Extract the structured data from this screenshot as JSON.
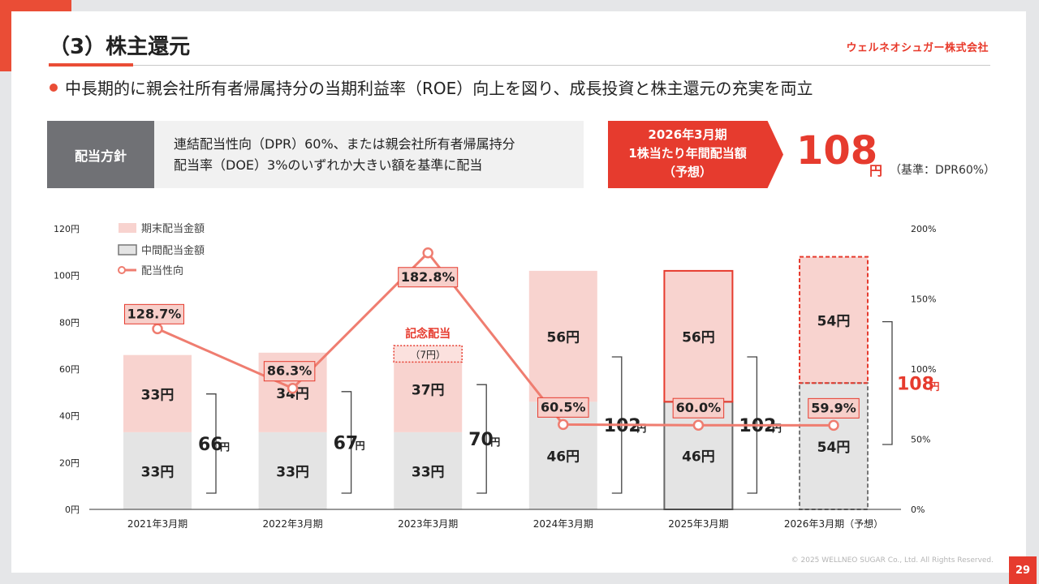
{
  "slide": {
    "title": "（3）株主還元",
    "company": "ウェルネオシュガー株式会社",
    "lead": "中長期的に親会社所有者帰属持分の当期利益率（ROE）向上を図り、成長投資と株主還元の充実を両立",
    "policy_label": "配当方針",
    "policy_line1": "連結配当性向（DPR）60%、または親会社所有者帰属持分",
    "policy_line2": "配当率（DOE）3%のいずれか大きい額を基準に配当",
    "forecast_line1": "2026年3月期",
    "forecast_line2": "1株当たり年間配当額",
    "forecast_line3": "（予想）",
    "dps_value": "108",
    "dps_unit": "円",
    "dps_note": "（基準：DPR60%）",
    "copyright": "© 2025 WELLNEO SUGAR Co., Ltd. All Rights Reserved.",
    "page_number": "29"
  },
  "colors": {
    "accent": "#e63b2e",
    "final_fill": "#f8d3cf",
    "interim_fill": "#e4e4e4",
    "line": "#ef7d70",
    "policy_label_bg": "#707175"
  },
  "chart_data": {
    "type": "bar",
    "categories": [
      "2021年3月期",
      "2022年3月期",
      "2023年3月期",
      "2024年3月期",
      "2025年3月期",
      "2026年3月期（予想）"
    ],
    "series": [
      {
        "name": "中間配当金額",
        "values": [
          33,
          33,
          33,
          46,
          46,
          54
        ],
        "labels": [
          "33円",
          "33円",
          "33円",
          "46円",
          "46円",
          "54円"
        ]
      },
      {
        "name": "期末配当金額",
        "values": [
          33,
          34,
          37,
          56,
          56,
          54
        ],
        "labels": [
          "33円",
          "34円",
          "37円",
          "56円",
          "56円",
          "54円"
        ]
      },
      {
        "name": "配当性向",
        "type": "line",
        "axis": "right",
        "values": [
          128.7,
          86.3,
          182.8,
          60.5,
          60.0,
          59.9
        ],
        "labels": [
          "128.7%",
          "86.3%",
          "182.8%",
          "60.5%",
          "60.0%",
          "59.9%"
        ]
      }
    ],
    "commemorative": {
      "category": "2023年3月期",
      "value": 7,
      "title": "記念配当",
      "label": "（7円）"
    },
    "totals": [
      {
        "num": "66",
        "unit": "円"
      },
      {
        "num": "67",
        "unit": "円"
      },
      {
        "num": "70",
        "unit": "円"
      },
      {
        "num": "102",
        "unit": "円"
      },
      {
        "num": "102",
        "unit": "円"
      },
      {
        "num": "108",
        "unit": "円"
      }
    ],
    "highlight": [
      "",
      "",
      "",
      "",
      "solid",
      "dashed"
    ],
    "y_left": {
      "ticks": [
        0,
        20,
        40,
        60,
        80,
        100,
        120
      ],
      "tick_labels": [
        "0円",
        "20円",
        "40円",
        "60円",
        "80円",
        "100円",
        "120円"
      ],
      "ylim": [
        0,
        120
      ]
    },
    "y_right": {
      "ticks": [
        0,
        50,
        100,
        150,
        200
      ],
      "tick_labels": [
        "0%",
        "50%",
        "100%",
        "150%",
        "200%"
      ],
      "ylim": [
        0,
        200
      ]
    },
    "legend": [
      "期末配当金額",
      "中間配当金額",
      "配当性向"
    ],
    "legend_position": "top-left"
  }
}
